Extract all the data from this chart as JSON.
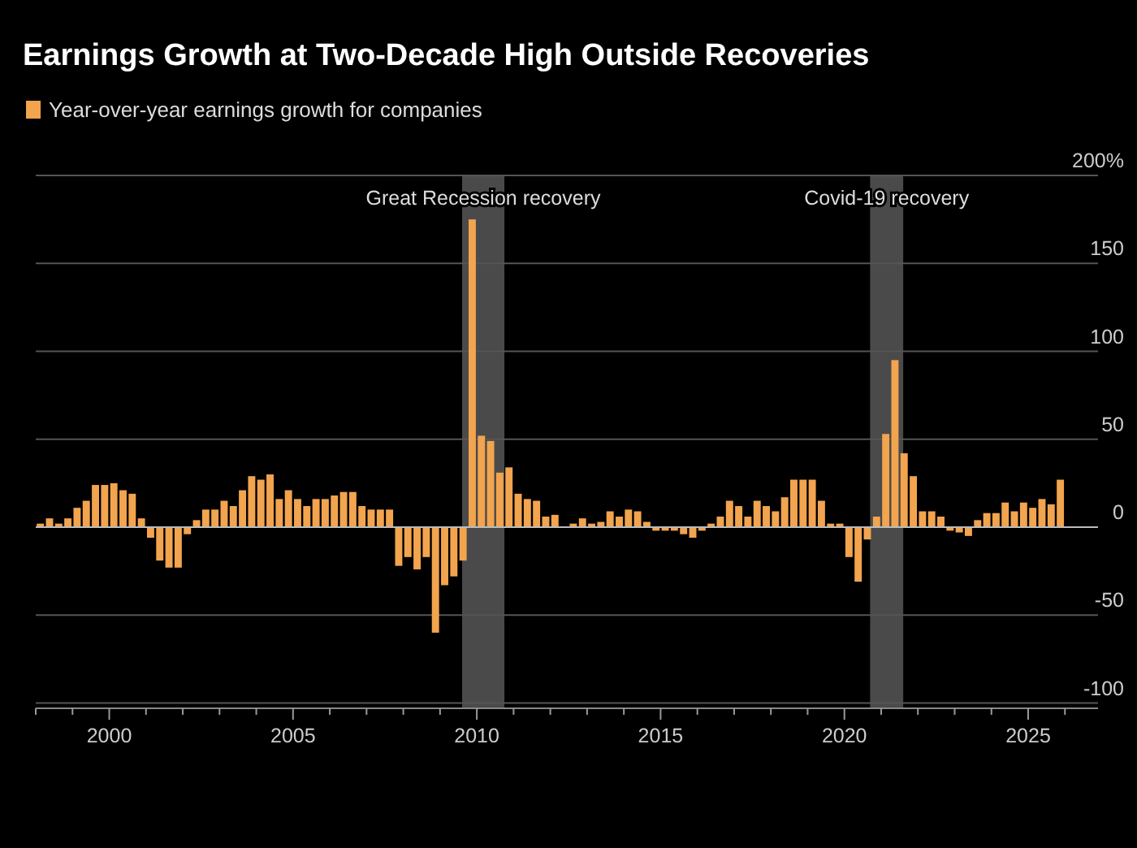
{
  "chart_data": {
    "type": "bar",
    "title": "Earnings Growth at Two-Decade High Outside Recoveries",
    "x": [
      1998.125,
      1998.375,
      1998.625,
      1998.875,
      1999.125,
      1999.375,
      1999.625,
      1999.875,
      2000.125,
      2000.375,
      2000.625,
      2000.875,
      2001.125,
      2001.375,
      2001.625,
      2001.875,
      2002.125,
      2002.375,
      2002.625,
      2002.875,
      2003.125,
      2003.375,
      2003.625,
      2003.875,
      2004.125,
      2004.375,
      2004.625,
      2004.875,
      2005.125,
      2005.375,
      2005.625,
      2005.875,
      2006.125,
      2006.375,
      2006.625,
      2006.875,
      2007.125,
      2007.375,
      2007.625,
      2007.875,
      2008.125,
      2008.375,
      2008.625,
      2008.875,
      2009.125,
      2009.375,
      2009.625,
      2009.875,
      2010.125,
      2010.375,
      2010.625,
      2010.875,
      2011.125,
      2011.375,
      2011.625,
      2011.875,
      2012.125,
      2012.375,
      2012.625,
      2012.875,
      2013.125,
      2013.375,
      2013.625,
      2013.875,
      2014.125,
      2014.375,
      2014.625,
      2014.875,
      2015.125,
      2015.375,
      2015.625,
      2015.875,
      2016.125,
      2016.375,
      2016.625,
      2016.875,
      2017.125,
      2017.375,
      2017.625,
      2017.875,
      2018.125,
      2018.375,
      2018.625,
      2018.875,
      2019.125,
      2019.375,
      2019.625,
      2019.875,
      2020.125,
      2020.375,
      2020.625,
      2020.875,
      2021.125,
      2021.375,
      2021.625,
      2021.875,
      2022.125,
      2022.375,
      2022.625,
      2022.875,
      2023.125,
      2023.375,
      2023.625,
      2023.875,
      2024.125,
      2024.375,
      2024.625,
      2024.875,
      2025.125,
      2025.375,
      2025.625,
      2025.875
    ],
    "series": [
      {
        "name": "Year-over-year earnings growth for companies",
        "color": "#f2a44e",
        "values": [
          2,
          5,
          2,
          5,
          11,
          15,
          24,
          24,
          25,
          21,
          19,
          5,
          -6,
          -19,
          -23,
          -23,
          -4,
          4,
          10,
          10,
          15,
          12,
          21,
          29,
          27,
          30,
          16,
          21,
          16,
          12,
          16,
          16,
          18,
          20,
          20,
          12,
          10,
          10,
          10,
          -22,
          -17,
          -24,
          -17,
          -60,
          -33,
          -28,
          -19,
          175,
          52,
          49,
          31,
          34,
          19,
          16,
          15,
          6,
          7,
          0,
          2,
          5,
          2,
          3,
          9,
          6,
          10,
          9,
          3,
          -2,
          -2,
          -2,
          -4,
          -6,
          -2,
          2,
          6,
          15,
          12,
          6,
          15,
          12,
          9,
          17,
          27,
          27,
          27,
          15,
          2,
          2,
          -17,
          -31,
          -7,
          6,
          53,
          95,
          42,
          29,
          9,
          9,
          6,
          -2,
          -3,
          -5,
          4,
          8,
          8,
          14,
          9,
          14,
          11,
          16,
          13,
          27
        ]
      }
    ],
    "xlim": [
      1998,
      2026.9
    ],
    "xticks": [
      {
        "value": 1998,
        "label": null
      },
      {
        "value": 1999,
        "label": null
      },
      2000,
      {
        "value": 2001,
        "label": null
      },
      {
        "value": 2002,
        "label": null
      },
      {
        "value": 2003,
        "label": null
      },
      {
        "value": 2004,
        "label": null
      },
      2005,
      {
        "value": 2006,
        "label": null
      },
      {
        "value": 2007,
        "label": null
      },
      {
        "value": 2008,
        "label": null
      },
      {
        "value": 2009,
        "label": null
      },
      2010,
      {
        "value": 2011,
        "label": null
      },
      {
        "value": 2012,
        "label": null
      },
      {
        "value": 2013,
        "label": null
      },
      {
        "value": 2014,
        "label": null
      },
      2015,
      {
        "value": 2016,
        "label": null
      },
      {
        "value": 2017,
        "label": null
      },
      {
        "value": 2018,
        "label": null
      },
      {
        "value": 2019,
        "label": null
      },
      2020,
      {
        "value": 2021,
        "label": null
      },
      {
        "value": 2022,
        "label": null
      },
      {
        "value": 2023,
        "label": null
      },
      {
        "value": 2024,
        "label": null
      },
      2025,
      {
        "value": 2026,
        "label": null
      }
    ],
    "ylim": [
      -103,
      200
    ],
    "yticks": [
      -100,
      -50,
      0,
      50,
      100,
      150,
      {
        "value": 200,
        "label": "200%"
      }
    ],
    "grid": "y",
    "legend": "top left",
    "bands": [
      {
        "axis": "x",
        "from": 2009.6,
        "to": 2010.75,
        "label": "Great Recession recovery",
        "color": "#4a4a4a"
      },
      {
        "axis": "x",
        "from": 2020.7,
        "to": 2021.6,
        "label": "Covid-19 recovery",
        "color": "#4a4a4a"
      }
    ]
  }
}
